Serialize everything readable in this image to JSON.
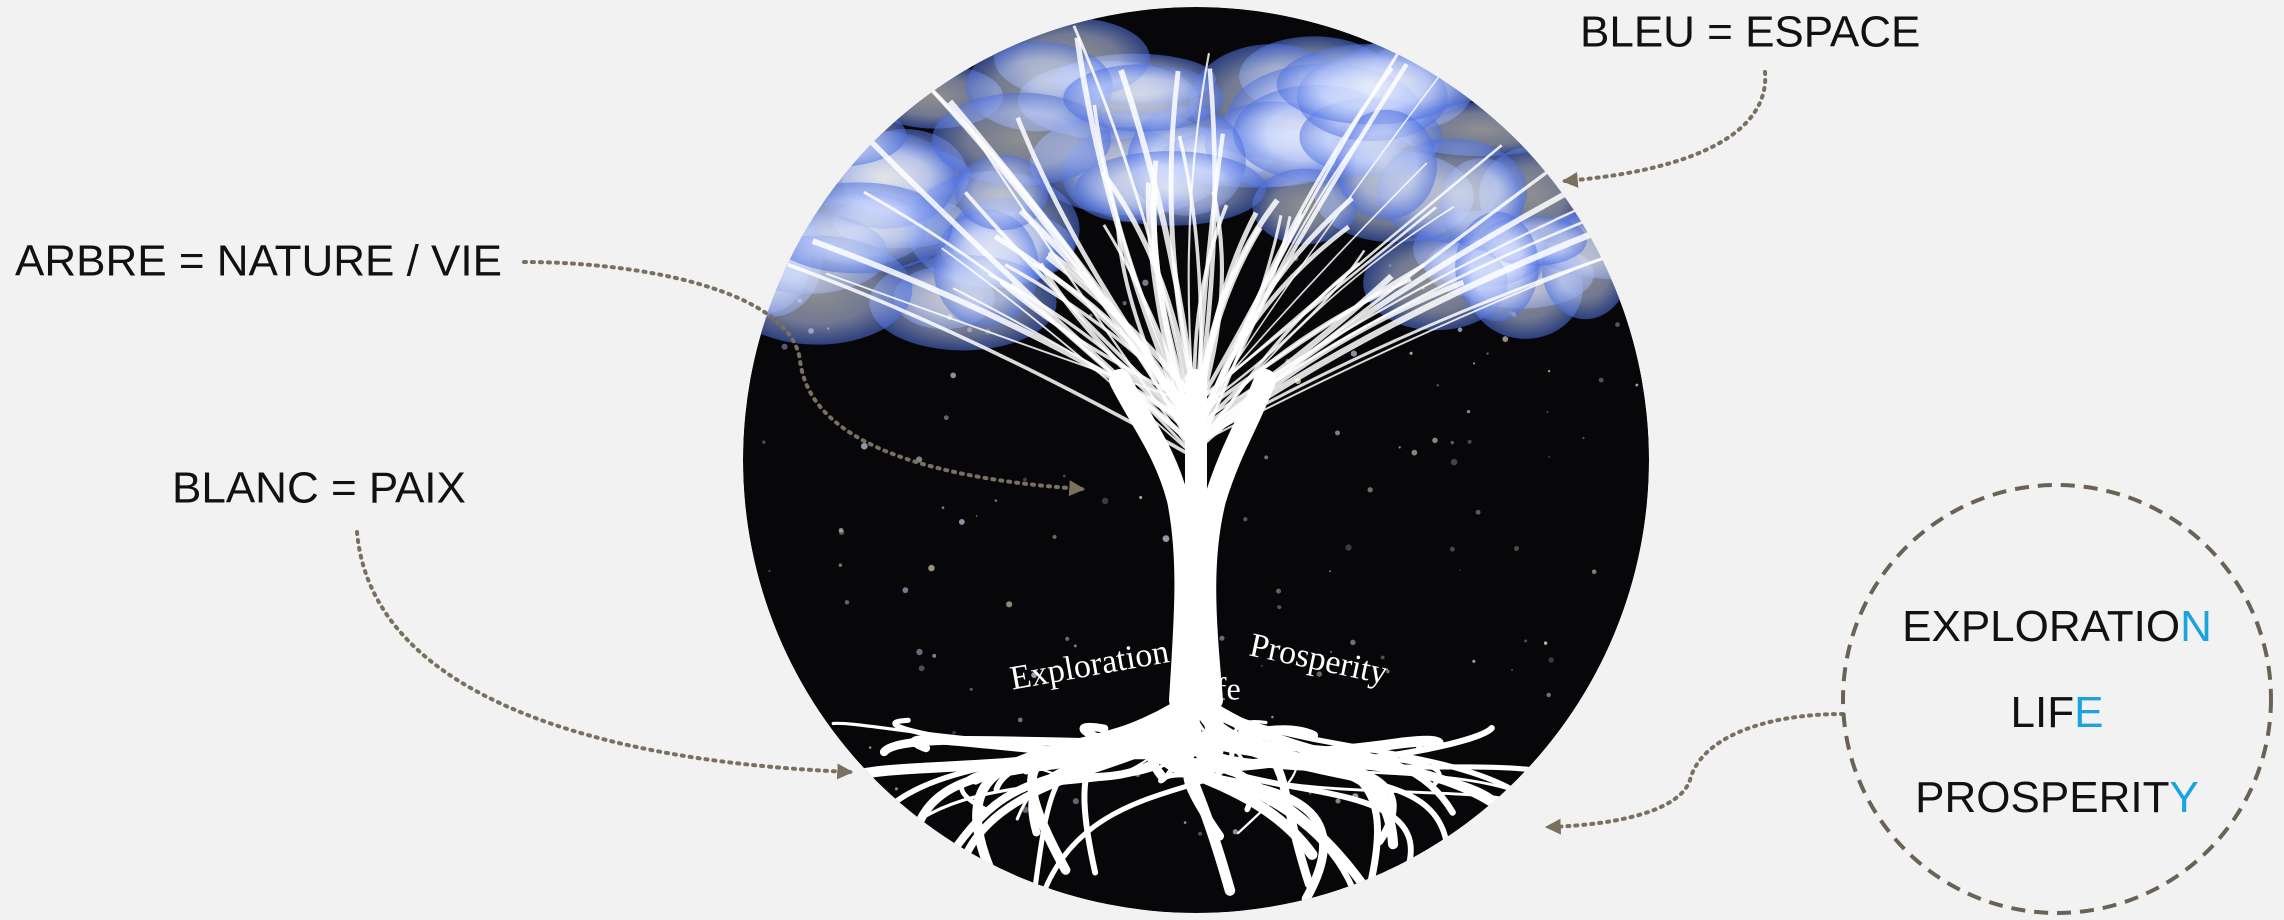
{
  "labels": {
    "blue": "BLEU = ESPACE",
    "tree": "ARBRE  = NATURE / VIE",
    "white": "BLANC = PAIX"
  },
  "image_texts": {
    "left": "Exploration",
    "center": "Life",
    "right": "Prosperity"
  },
  "acronym": [
    {
      "word": "EXPLORATIO",
      "letter": "N"
    },
    {
      "word": "LIF",
      "letter": "E"
    },
    {
      "word": "PROSPERIT",
      "letter": "Y"
    }
  ]
}
